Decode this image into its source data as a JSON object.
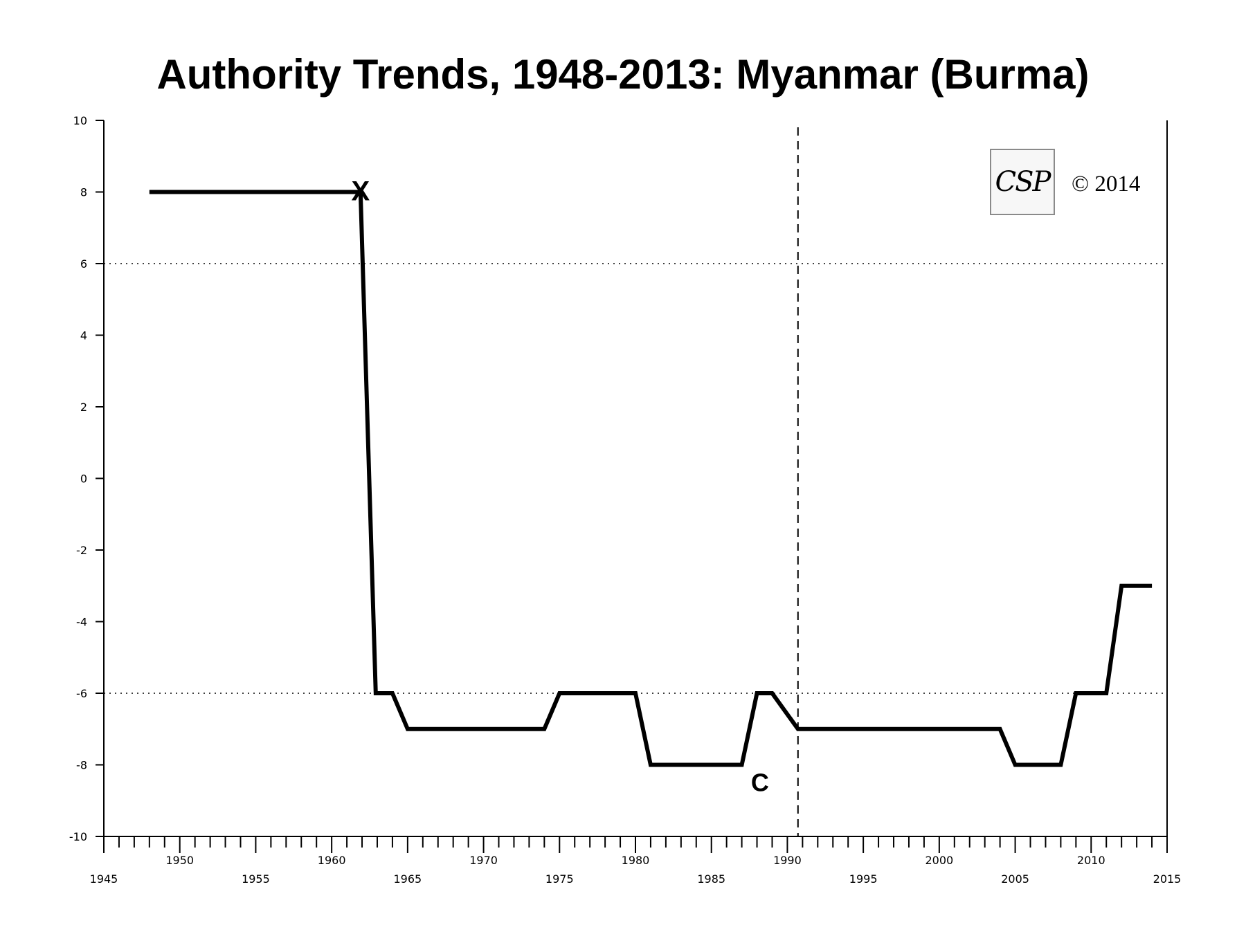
{
  "chart_data": {
    "type": "line",
    "title": "Authority Trends, 1948-2013: Myanmar (Burma)",
    "xlabel": "",
    "ylabel": "",
    "xlim": [
      1945,
      2015
    ],
    "ylim": [
      -10,
      10
    ],
    "x_ticks": [
      1945,
      1950,
      1955,
      1960,
      1965,
      1970,
      1975,
      1980,
      1985,
      1990,
      1995,
      2000,
      2005,
      2010,
      2015
    ],
    "y_ticks": [
      -10,
      -8,
      -6,
      -4,
      -2,
      0,
      2,
      4,
      6,
      8,
      10
    ],
    "reference_lines": {
      "horizontal_dotted": [
        6,
        -6
      ],
      "vertical_dashed": [
        1990.7
      ]
    },
    "series": [
      {
        "color": "#000000",
        "x": [
          1948,
          1961.9,
          1962.9,
          1964,
          1965,
          1974,
          1975,
          1980,
          1981,
          1987,
          1988,
          1989,
          1990.7,
          2004,
          2005,
          2008,
          2009,
          2011,
          2012,
          2014
        ],
        "y": [
          8,
          8,
          -6,
          -6,
          -7,
          -7,
          -6,
          -6,
          -8,
          -8,
          -6,
          -6,
          -7,
          -7,
          -8,
          -8,
          -6,
          -6,
          -3,
          -3
        ]
      }
    ],
    "annotations": [
      {
        "text": "X",
        "x": 1961.9,
        "y": 8
      },
      {
        "text": "C",
        "x": 1988.2,
        "y": -8.5
      }
    ],
    "grid": false,
    "legend": "none"
  },
  "logo": {
    "text": "CSP",
    "copyright": "© 2014"
  }
}
